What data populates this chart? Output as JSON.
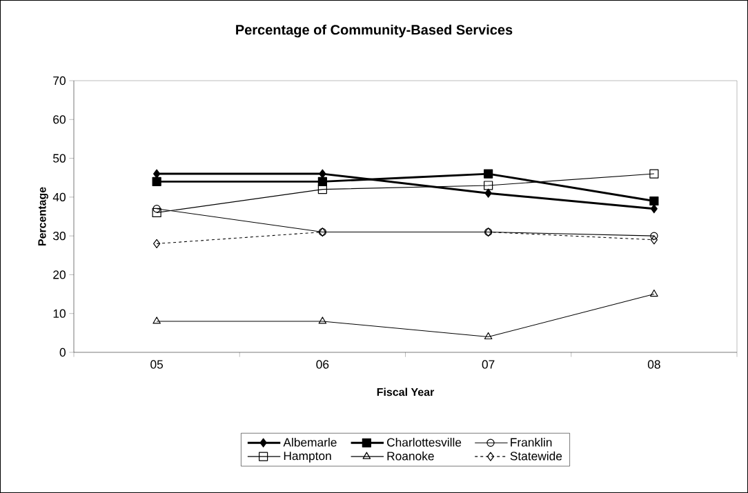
{
  "chart_data": {
    "type": "line",
    "title": "Percentage of Community-Based Services",
    "xlabel": "Fiscal Year",
    "ylabel": "Percentage",
    "categories": [
      "05",
      "06",
      "07",
      "08"
    ],
    "series": [
      {
        "name": "Albemarle",
        "color": "#000000",
        "marker": "diamond",
        "line_style": "solid",
        "values": [
          46,
          46,
          41,
          37
        ]
      },
      {
        "name": "Charlottesville",
        "color": "#000000",
        "marker": "square",
        "line_style": "solid",
        "values": [
          44,
          44,
          46,
          39
        ]
      },
      {
        "name": "Franklin",
        "color": "#000000",
        "marker": "circle",
        "line_style": "solid",
        "values": [
          37,
          31,
          31,
          30
        ]
      },
      {
        "name": "Hampton",
        "color": "#000000",
        "marker": "square",
        "line_style": "solid",
        "values": [
          36,
          42,
          43,
          46
        ]
      },
      {
        "name": "Roanoke",
        "color": "#000000",
        "marker": "triangle",
        "line_style": "solid",
        "values": [
          8,
          8,
          4,
          15
        ]
      },
      {
        "name": "Statewide",
        "color": "#000000",
        "marker": "diamond",
        "line_style": "dashed",
        "values": [
          28,
          31,
          31,
          29
        ]
      }
    ],
    "ylim": [
      0,
      70
    ],
    "yticks": [
      0,
      10,
      20,
      30,
      40,
      50,
      60,
      70
    ],
    "grid": false,
    "legend": "bottom"
  }
}
